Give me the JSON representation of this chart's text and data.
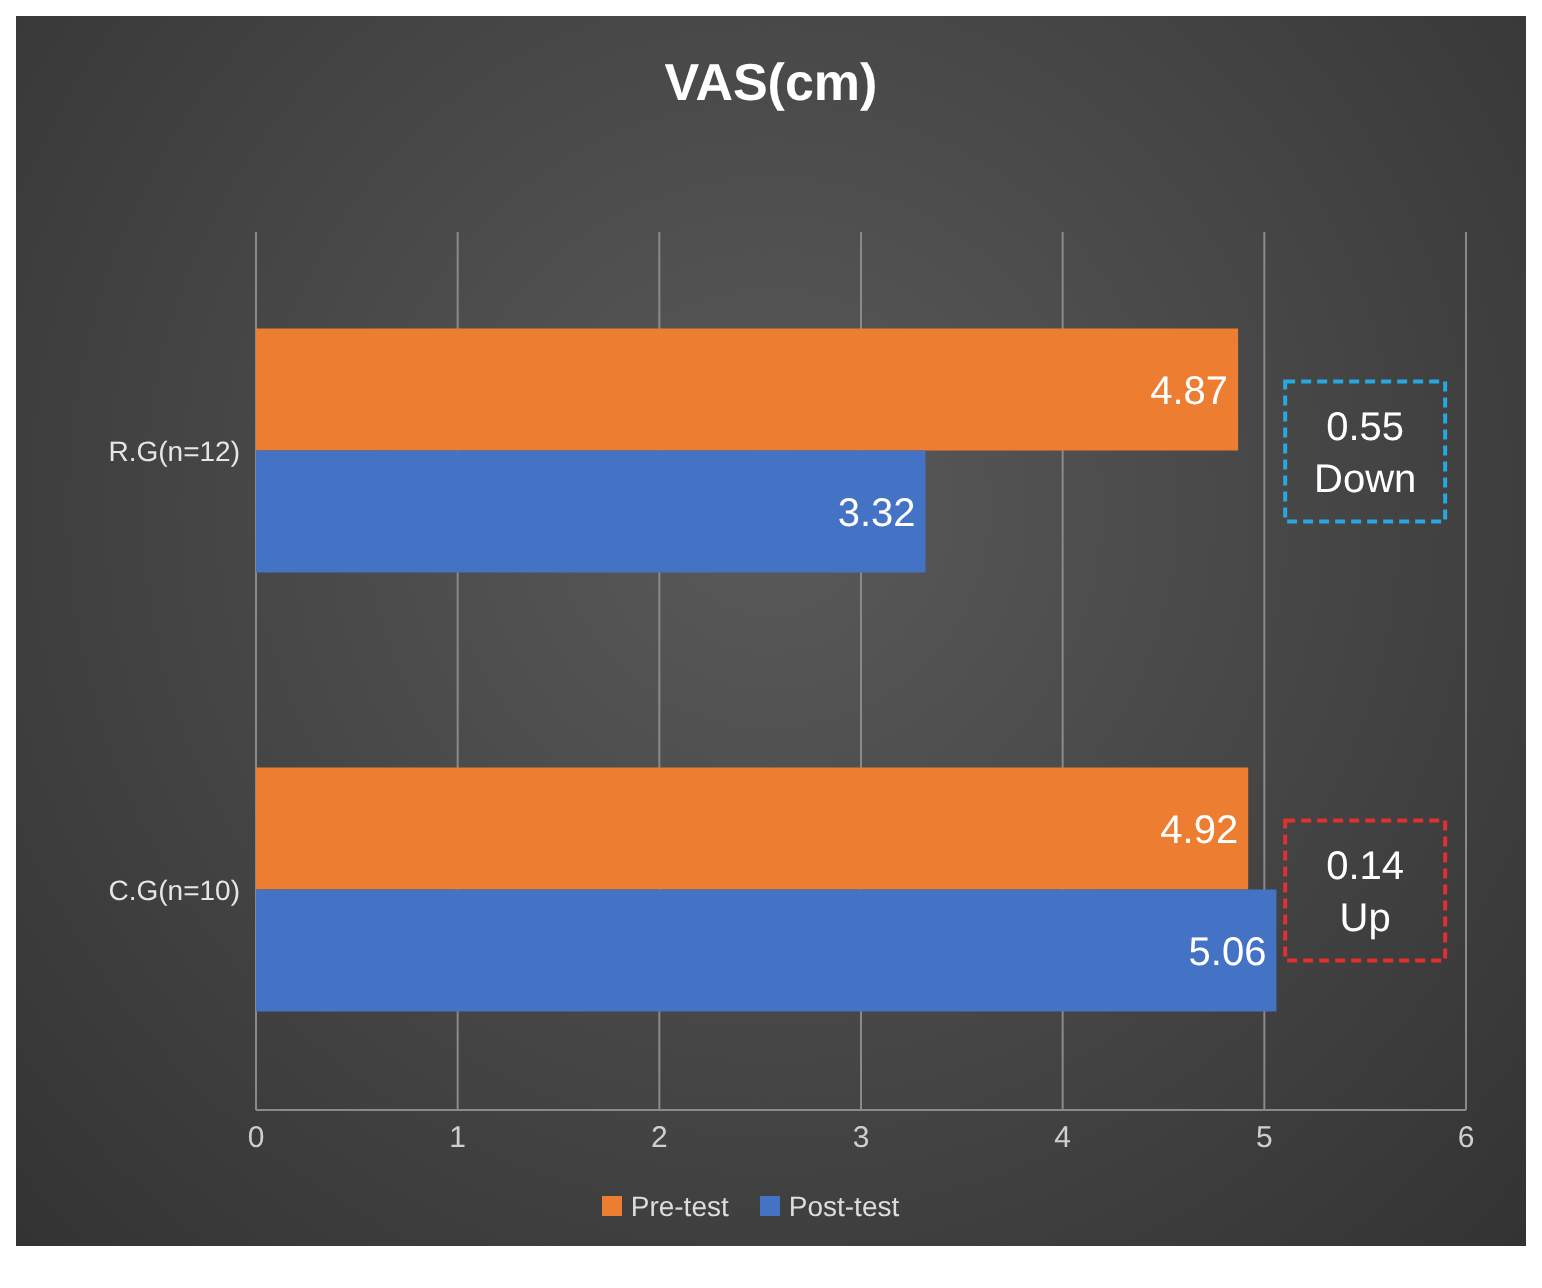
{
  "chart_data": {
    "type": "bar",
    "orientation": "horizontal",
    "title": "VAS(cm)",
    "categories": [
      "R.G(n=12)",
      "C.G(n=10)"
    ],
    "series": [
      {
        "name": "Pre-test",
        "color": "#ed7d31",
        "values": [
          4.87,
          4.92
        ]
      },
      {
        "name": "Post-test",
        "color": "#4472c4",
        "values": [
          3.32,
          5.06
        ]
      }
    ],
    "xlim": [
      0,
      6
    ],
    "xticks": [
      0,
      1,
      2,
      3,
      4,
      5,
      6
    ],
    "grid": "x",
    "legend": "bottom",
    "data_labels": true,
    "annotations": [
      "0.55 Down",
      "0.14 Up"
    ]
  }
}
